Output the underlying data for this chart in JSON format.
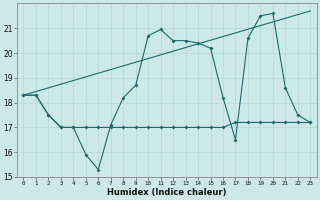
{
  "xlabel": "Humidex (Indice chaleur)",
  "bg_color": "#cce8e8",
  "line_color": "#1a6b6b",
  "xlim": [
    -0.5,
    23.5
  ],
  "ylim": [
    15,
    22
  ],
  "yticks": [
    15,
    16,
    17,
    18,
    19,
    20,
    21
  ],
  "xticks": [
    0,
    1,
    2,
    3,
    4,
    5,
    6,
    7,
    8,
    9,
    10,
    11,
    12,
    13,
    14,
    15,
    16,
    17,
    18,
    19,
    20,
    21,
    22,
    23
  ],
  "line1_x": [
    0,
    1,
    2,
    3,
    4,
    5,
    6,
    7,
    8,
    9,
    10,
    11,
    12,
    13,
    14,
    15,
    16,
    17,
    18,
    19,
    20,
    21,
    22,
    23
  ],
  "line1_y": [
    18.3,
    18.3,
    17.5,
    17.0,
    17.0,
    15.9,
    15.3,
    17.1,
    18.2,
    18.7,
    20.7,
    20.95,
    20.5,
    20.5,
    20.4,
    20.2,
    18.2,
    16.5,
    20.6,
    21.5,
    21.6,
    18.6,
    17.5,
    17.2
  ],
  "line2_x": [
    0,
    1,
    2,
    3,
    4,
    5,
    6,
    7,
    8,
    9,
    10,
    11,
    12,
    13,
    14,
    15,
    16,
    17,
    18,
    19,
    20,
    21,
    22,
    23
  ],
  "line2_y": [
    18.3,
    18.3,
    17.5,
    17.0,
    17.0,
    17.0,
    17.0,
    17.0,
    17.0,
    17.0,
    17.0,
    17.0,
    17.0,
    17.0,
    17.0,
    17.0,
    17.0,
    17.2,
    17.2,
    17.2,
    17.2,
    17.2,
    17.2,
    17.2
  ],
  "line3_x": [
    0,
    23
  ],
  "line3_y": [
    18.3,
    21.7
  ]
}
